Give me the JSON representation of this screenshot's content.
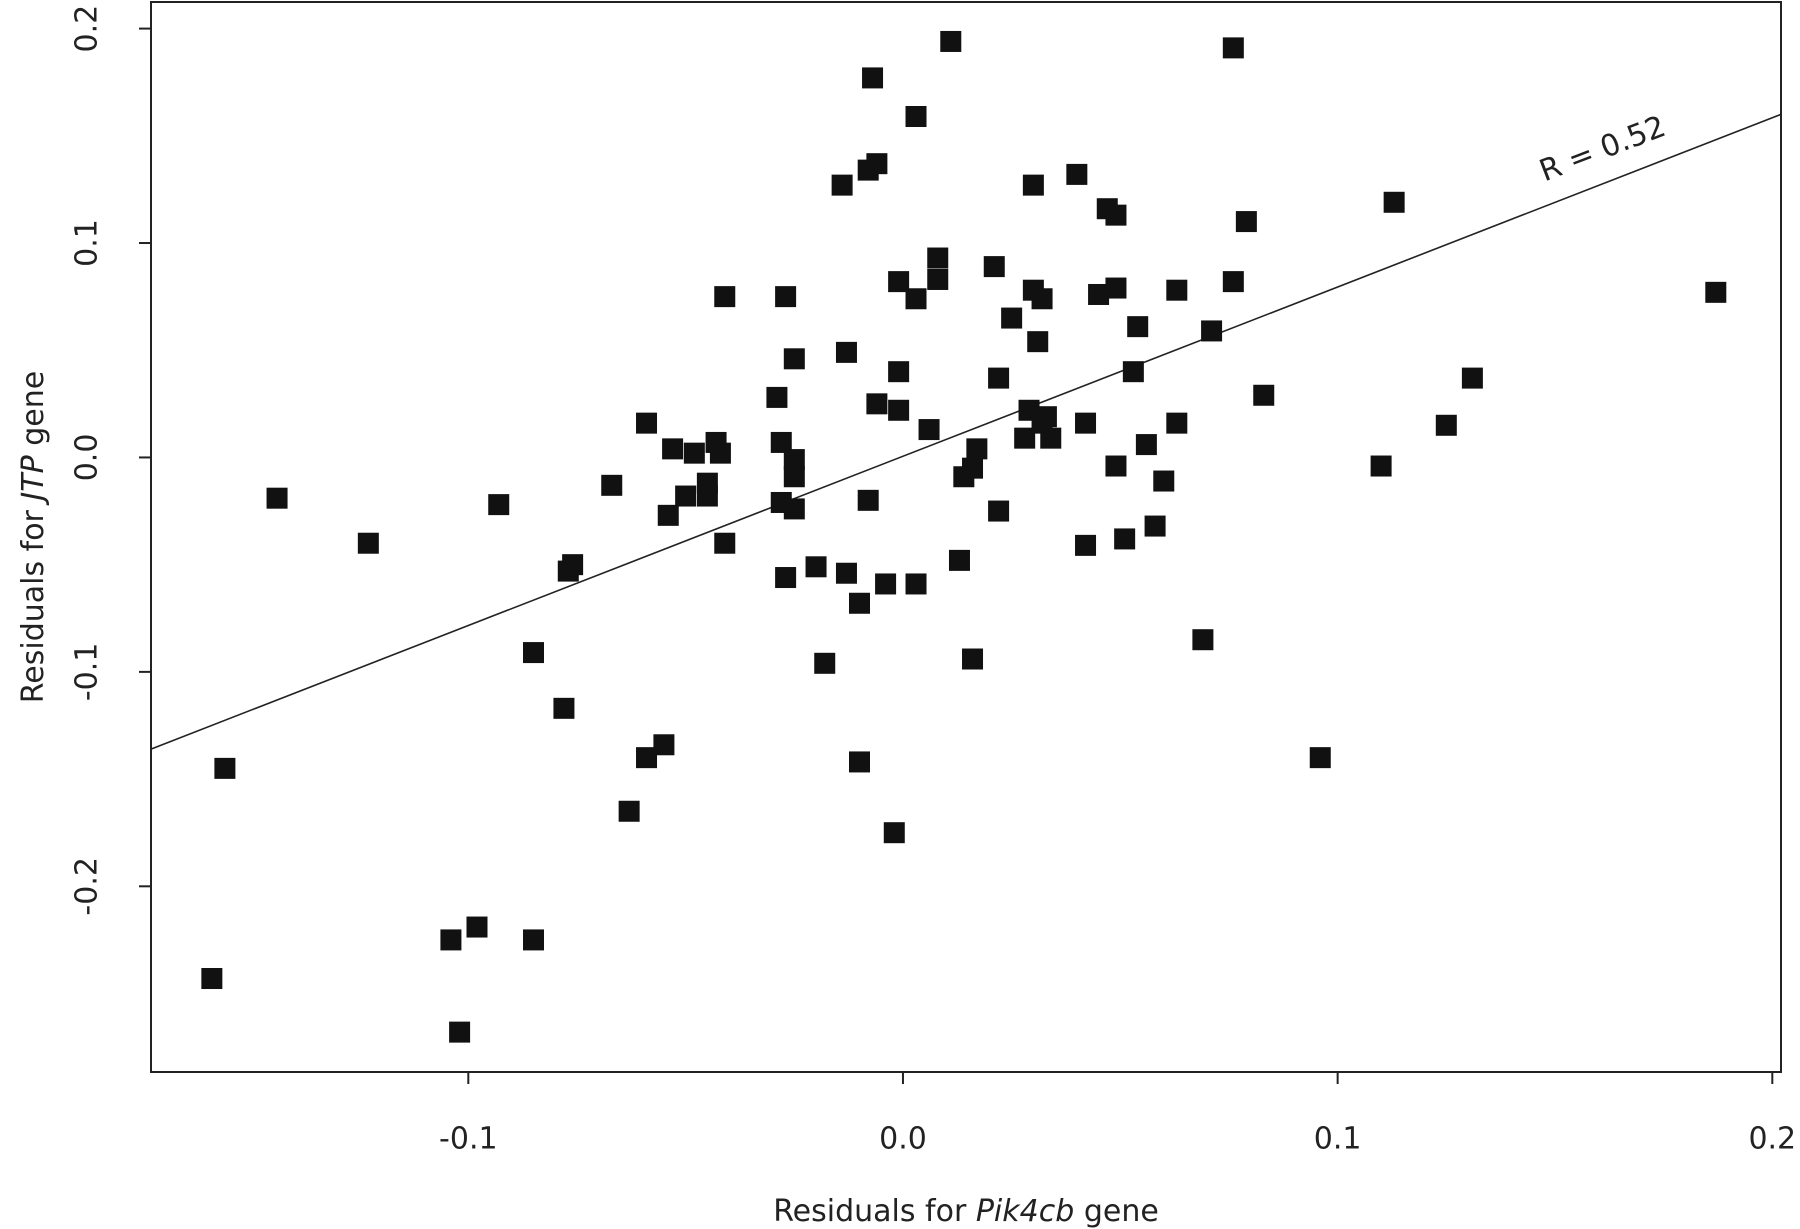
{
  "chart_data": {
    "type": "scatter",
    "xlabel_parts": [
      {
        "text": "Residuals for "
      },
      {
        "text": "Pik4cb",
        "italic": true
      },
      {
        "text": " gene"
      }
    ],
    "ylabel_parts": [
      {
        "text": "Residuals for "
      },
      {
        "text": "JTP",
        "italic": true
      },
      {
        "text": " gene"
      }
    ],
    "annotation": "R = 0.52",
    "color": "#111111",
    "xlim": [
      -0.173,
      0.202
    ],
    "ylim": [
      -0.2866,
      0.2124
    ],
    "xticks": [
      -0.1,
      {
        "value": 0,
        "label": "0.0"
      },
      0.1,
      0.2
    ],
    "yticks": [
      -0.2,
      -0.1,
      {
        "value": 0,
        "label": "0.0"
      },
      0.1,
      0.2
    ],
    "x": [
      -0.159,
      -0.156,
      -0.144,
      -0.123,
      -0.104,
      -0.098,
      -0.102,
      -0.093,
      -0.085,
      -0.085,
      -0.078,
      -0.077,
      -0.076,
      -0.067,
      -0.063,
      -0.059,
      -0.055,
      -0.059,
      -0.054,
      -0.053,
      -0.05,
      -0.048,
      -0.045,
      -0.045,
      -0.043,
      -0.042,
      -0.041,
      -0.041,
      -0.029,
      -0.027,
      -0.028,
      -0.028,
      -0.027,
      -0.025,
      -0.025,
      -0.025,
      -0.025,
      -0.02,
      -0.018,
      -0.014,
      -0.013,
      -0.013,
      -0.01,
      -0.01,
      -0.008,
      -0.007,
      -0.008,
      -0.006,
      -0.006,
      -0.004,
      -0.002,
      -0.001,
      -0.001,
      -0.001,
      0.003,
      0.003,
      0.003,
      0.006,
      0.008,
      0.008,
      0.011,
      0.013,
      0.014,
      0.016,
      0.017,
      0.016,
      0.021,
      0.022,
      0.022,
      0.025,
      0.028,
      0.029,
      0.03,
      0.03,
      0.031,
      0.032,
      0.032,
      0.033,
      0.034,
      0.04,
      0.042,
      0.042,
      0.045,
      0.047,
      0.049,
      0.049,
      0.049,
      0.051,
      0.053,
      0.054,
      0.056,
      0.058,
      0.06,
      0.063,
      0.063,
      0.069,
      0.071,
      0.076,
      0.076,
      0.079,
      0.083,
      0.096,
      0.11,
      0.113,
      0.125,
      0.131,
      0.187
    ],
    "values": [
      -0.243,
      -0.145,
      -0.019,
      -0.04,
      -0.225,
      -0.219,
      -0.268,
      -0.022,
      -0.225,
      -0.091,
      -0.117,
      -0.053,
      -0.05,
      -0.013,
      -0.165,
      -0.14,
      -0.134,
      0.016,
      -0.027,
      0.004,
      -0.018,
      0.002,
      -0.012,
      -0.018,
      0.007,
      0.002,
      0.075,
      -0.04,
      0.028,
      0.075,
      0.007,
      -0.021,
      -0.056,
      0.046,
      -0.001,
      -0.009,
      -0.024,
      -0.051,
      -0.096,
      0.127,
      0.049,
      -0.054,
      -0.068,
      -0.142,
      -0.02,
      0.177,
      0.134,
      0.137,
      0.025,
      -0.059,
      -0.175,
      0.082,
      0.04,
      0.022,
      0.159,
      0.074,
      -0.059,
      0.013,
      0.093,
      0.083,
      0.194,
      -0.048,
      -0.009,
      -0.005,
      0.004,
      -0.094,
      0.089,
      -0.025,
      0.037,
      0.065,
      0.009,
      0.022,
      0.127,
      0.078,
      0.054,
      0.074,
      0.016,
      0.019,
      0.009,
      0.132,
      0.016,
      -0.041,
      0.076,
      0.116,
      0.079,
      0.113,
      -0.004,
      -0.038,
      0.04,
      0.061,
      0.006,
      -0.032,
      -0.011,
      0.016,
      0.078,
      -0.085,
      0.059,
      0.082,
      0.191,
      0.11,
      0.029,
      -0.14,
      -0.004,
      0.119,
      0.015,
      0.037,
      0.077
    ],
    "fit_line": {
      "x": [
        -0.173,
        0.202
      ],
      "values": [
        -0.136,
        0.16
      ]
    }
  }
}
